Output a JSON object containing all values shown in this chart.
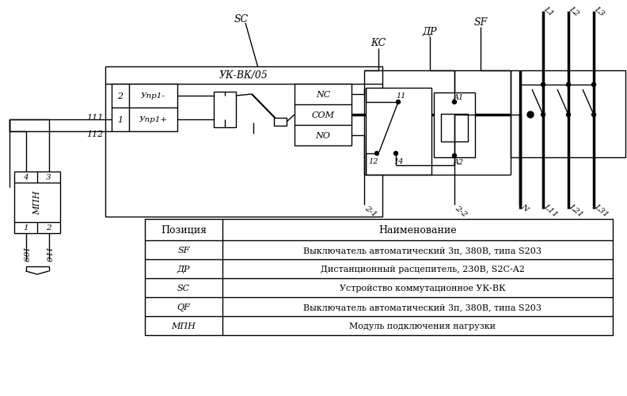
{
  "bg_color": "#ffffff",
  "table_rows": [
    [
      "SF",
      "Выключатель автоматический 3п, 380В, типа S203"
    ],
    [
      "ДР",
      "Дистанционный расцепитель, 230В, S2C-A2"
    ],
    [
      "SC",
      "Устройство коммутационное УК-ВК"
    ],
    [
      "QF",
      "Выключатель автоматический 3п, 380В, типа S203"
    ],
    [
      "МПН",
      "Модуль подключения нагрузки"
    ]
  ],
  "lw_thin": 1.0,
  "lw_med": 1.5,
  "lw_thick": 2.5
}
